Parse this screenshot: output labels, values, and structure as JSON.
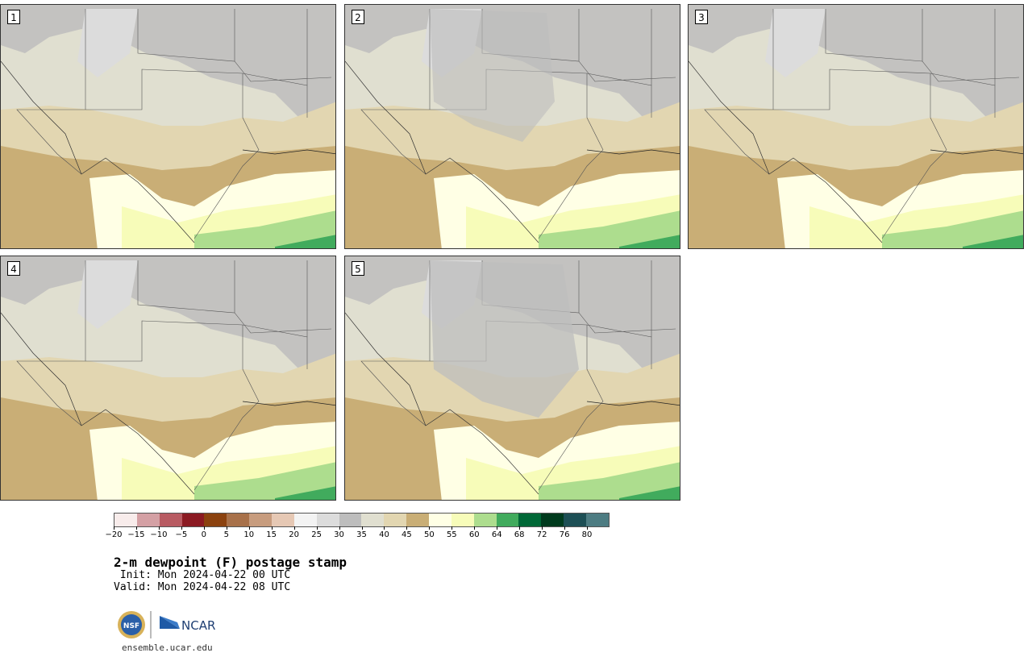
{
  "panels": [
    {
      "label": "1"
    },
    {
      "label": "2"
    },
    {
      "label": "3"
    },
    {
      "label": "4"
    },
    {
      "label": "5"
    }
  ],
  "colorbar": {
    "colors": [
      "#f8eceb",
      "#d4a0a4",
      "#b85b62",
      "#8b1a22",
      "#8b420f",
      "#a8714a",
      "#c79c7e",
      "#e6c8b4",
      "#f3f3f3",
      "#dcdcdc",
      "#bdbdbd",
      "#e0dfd0",
      "#e2d6b1",
      "#c9ae76",
      "#ffffe5",
      "#f7fcb9",
      "#addd8e",
      "#41ab5d",
      "#006837",
      "#003b1e",
      "#1d4f55",
      "#4d7c82"
    ],
    "tick_labels": [
      "−20",
      "−15",
      "−10",
      "−5",
      "0",
      "5",
      "10",
      "15",
      "20",
      "25",
      "30",
      "35",
      "40",
      "45",
      "50",
      "55",
      "60",
      "64",
      "68",
      "72",
      "76",
      "80"
    ]
  },
  "title": "2-m dewpoint (F) postage stamp",
  "init_line": " Init: Mon 2024-04-22 00 UTC",
  "valid_line": "Valid: Mon 2024-04-22 08 UTC",
  "logo": {
    "nsf_text": "NSF",
    "ncar_text": "NCAR"
  },
  "url": "ensemble.ucar.edu"
}
